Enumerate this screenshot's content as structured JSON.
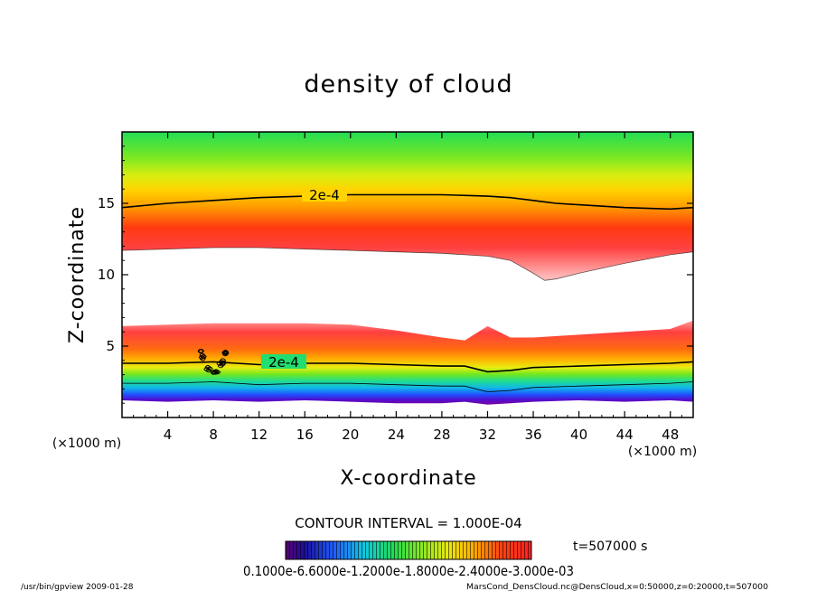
{
  "chart_data": {
    "type": "heatmap",
    "title": "density of cloud",
    "xlabel": "X-coordinate",
    "ylabel": "Z-coordinate",
    "x_unit": "(×1000 m)",
    "z_unit": "(×1000 m)",
    "xlim": [
      0,
      50
    ],
    "ylim": [
      0,
      20
    ],
    "x_ticks": [
      4,
      8,
      12,
      16,
      20,
      24,
      28,
      32,
      36,
      40,
      44,
      48
    ],
    "y_ticks": [
      5,
      10,
      15
    ],
    "contour_interval_text": "CONTOUR INTERVAL = 1.000E-04",
    "contour_labels": [
      "2e-4",
      "2e-4"
    ],
    "time_text": "t=507000 s",
    "colorbar_ticks_text": "0.1000e-6.6000e-1.2000e-1.8000e-2.4000e-3.000e-03",
    "footer_left": "/usr/bin/gpview   2009-01-28",
    "footer_right": "MarsCond_DensCloud.nc@DensCloud,x=0:50000,z=0:20000,t=507000",
    "upper_band": {
      "x": [
        0,
        4,
        8,
        12,
        16,
        20,
        24,
        28,
        32,
        34,
        36,
        37,
        38,
        40,
        44,
        48,
        50
      ],
      "contour_2e4_z": [
        14.7,
        15.0,
        15.2,
        15.4,
        15.5,
        15.6,
        15.6,
        15.6,
        15.5,
        15.4,
        15.2,
        15.1,
        15.0,
        14.9,
        14.7,
        14.6,
        14.7
      ],
      "lower_edge_z": [
        11.7,
        11.8,
        11.9,
        11.9,
        11.8,
        11.7,
        11.6,
        11.5,
        11.3,
        11.0,
        10.1,
        9.6,
        9.7,
        10.1,
        10.8,
        11.4,
        11.6
      ]
    },
    "lower_band": {
      "x": [
        0,
        4,
        8,
        12,
        16,
        20,
        24,
        28,
        30,
        32,
        34,
        36,
        40,
        44,
        48,
        50
      ],
      "top_edge_z": [
        6.4,
        6.5,
        6.6,
        6.6,
        6.6,
        6.5,
        6.1,
        5.6,
        5.4,
        6.4,
        5.6,
        5.6,
        5.8,
        6.0,
        6.2,
        6.8
      ],
      "contour_2e4_z": [
        3.8,
        3.8,
        3.9,
        3.7,
        3.8,
        3.8,
        3.7,
        3.6,
        3.6,
        3.2,
        3.3,
        3.5,
        3.6,
        3.7,
        3.8,
        3.9
      ],
      "bottom_edge_z": [
        1.2,
        1.1,
        1.2,
        1.1,
        1.2,
        1.1,
        1.0,
        1.0,
        1.1,
        0.9,
        1.0,
        1.1,
        1.2,
        1.1,
        1.2,
        1.1
      ]
    }
  }
}
